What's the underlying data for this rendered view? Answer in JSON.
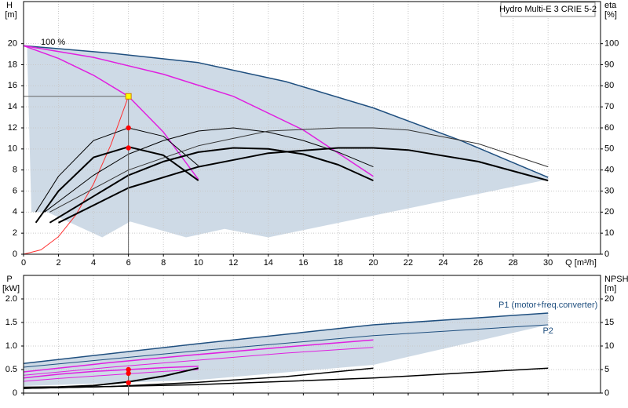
{
  "chart_data": [
    {
      "type": "line",
      "title": "Hydro Multi-E 3 CRIE 5-2",
      "xlabel": "Q [m³/h]",
      "ylabel": "H",
      "yunit": "[m]",
      "y2label": "eta",
      "y2unit": "[%]",
      "annotation": "100 %",
      "xlim": [
        0,
        33
      ],
      "xticks": [
        0,
        2,
        4,
        6,
        8,
        10,
        12,
        14,
        16,
        18,
        20,
        22,
        24,
        26,
        28,
        30
      ],
      "ylim": [
        0,
        24
      ],
      "yticks": [
        0,
        2,
        4,
        6,
        8,
        10,
        12,
        14,
        16,
        18,
        20
      ],
      "y2lim": [
        0,
        120
      ],
      "y2ticks": [
        0,
        10,
        20,
        30,
        40,
        50,
        60,
        70,
        80,
        90,
        100
      ],
      "grid": true,
      "series": [
        {
          "type": "area",
          "color": "#c9d6e3",
          "x": [
            0,
            5,
            10,
            15,
            20,
            25,
            30,
            30,
            14,
            11.5,
            9.3,
            6.1,
            4.5,
            1.35,
            0.45,
            0.2
          ],
          "values": [
            19.8,
            19.1,
            18.2,
            16.4,
            13.9,
            10.8,
            7.3,
            7.1,
            1.6,
            2.4,
            1.6,
            3.1,
            1.6,
            4.0,
            4.0,
            19.7
          ]
        },
        {
          "type": "line",
          "color": "#1f4f7f",
          "width": 1.5,
          "x": [
            0,
            5,
            10,
            15,
            20,
            25,
            30
          ],
          "values": [
            19.8,
            19.1,
            18.2,
            16.4,
            13.9,
            10.8,
            7.3
          ]
        },
        {
          "type": "line",
          "color": "#e020e0",
          "width": 1.5,
          "x": [
            0,
            4,
            8,
            12,
            16,
            20
          ],
          "values": [
            19.8,
            18.7,
            17.1,
            15.0,
            11.8,
            7.4
          ]
        },
        {
          "type": "line",
          "color": "#e020e0",
          "width": 1.5,
          "x": [
            0,
            2,
            4,
            6,
            8,
            10
          ],
          "values": [
            19.8,
            18.6,
            17.0,
            15.0,
            11.6,
            7.1
          ]
        },
        {
          "type": "line",
          "color": "#ff3030",
          "width": 1,
          "x": [
            0,
            1,
            2,
            3,
            4,
            5,
            6
          ],
          "values": [
            0,
            0.42,
            1.67,
            3.75,
            6.67,
            10.42,
            15
          ]
        },
        {
          "type": "line",
          "axis": "y2",
          "color": "#000000",
          "width": 2,
          "x": [
            0.7,
            2,
            4,
            6,
            8,
            10
          ],
          "values": [
            15,
            30,
            46,
            51,
            47,
            35
          ]
        },
        {
          "type": "line",
          "axis": "y2",
          "color": "#000000",
          "width": 1,
          "x": [
            0.7,
            2,
            4,
            6,
            8,
            10
          ],
          "values": [
            20,
            37,
            54,
            60,
            56,
            42
          ]
        },
        {
          "type": "line",
          "axis": "y2",
          "color": "#000000",
          "width": 2,
          "x": [
            1.5,
            4,
            6,
            8,
            10,
            12,
            14,
            16,
            18,
            20
          ],
          "values": [
            15,
            27.5,
            37.5,
            44,
            48.5,
            50.5,
            50,
            47.5,
            42.5,
            35
          ]
        },
        {
          "type": "line",
          "axis": "y2",
          "color": "#000000",
          "width": 1,
          "x": [
            1.2,
            4,
            6,
            8,
            10,
            12,
            14,
            16,
            18,
            20
          ],
          "values": [
            20,
            37.5,
            47.5,
            54,
            58.5,
            60,
            58,
            54,
            48.5,
            41.5
          ]
        },
        {
          "type": "line",
          "axis": "y2",
          "color": "#000000",
          "width": 2,
          "x": [
            2,
            6,
            10,
            14,
            18,
            20,
            22,
            26,
            30
          ],
          "values": [
            15,
            31.5,
            41.5,
            48,
            50.5,
            50.5,
            49.5,
            44,
            35
          ]
        },
        {
          "type": "line",
          "axis": "y2",
          "color": "#333333",
          "width": 1,
          "x": [
            1.5,
            6,
            10,
            14,
            18,
            20,
            22,
            26,
            30
          ],
          "values": [
            20,
            40,
            51.5,
            58.5,
            60,
            60,
            59,
            52.5,
            41.5
          ]
        },
        {
          "type": "point",
          "marker": "circle",
          "color": "#ff0000",
          "x": [
            6,
            6
          ],
          "values": [
            12,
            10.1
          ]
        },
        {
          "type": "point",
          "marker": "square",
          "color": "#ffff00",
          "guides": "both",
          "x": [
            6
          ],
          "values": [
            15
          ]
        }
      ]
    },
    {
      "type": "line",
      "ylabel": "P",
      "yunit": "[kW]",
      "y2label": "NPSH",
      "y2unit": "[m]",
      "xlim": [
        0,
        33
      ],
      "ylim": [
        0,
        2.5
      ],
      "yticks": [
        0,
        0.5,
        {
          "value": 1,
          "label": "1.0"
        },
        1.5,
        {
          "value": 2,
          "label": "2.0"
        }
      ],
      "y2lim": [
        0,
        25
      ],
      "y2ticks": [
        0,
        5,
        10,
        15,
        20
      ],
      "grid": true,
      "series": [
        {
          "type": "area",
          "color": "#c9d6e3",
          "x": [
            0,
            10,
            20,
            30,
            30,
            20,
            10,
            0
          ],
          "values": [
            0.63,
            1.05,
            1.45,
            1.7,
            1.45,
            0.6,
            0.28,
            0.15
          ]
        },
        {
          "type": "line",
          "name": "P1 (motor+freq.converter)",
          "color": "#1f4f7f",
          "width": 1.5,
          "x": [
            0,
            10,
            20,
            30
          ],
          "values": [
            0.63,
            1.05,
            1.45,
            1.7
          ]
        },
        {
          "type": "line",
          "name": "P2",
          "color": "#1f4f7f",
          "width": 1,
          "x": [
            0,
            10,
            20,
            30
          ],
          "values": [
            0.55,
            0.9,
            1.22,
            1.45
          ]
        },
        {
          "type": "line",
          "color": "#e020e0",
          "width": 1.5,
          "x": [
            0,
            5,
            10,
            15,
            20
          ],
          "values": [
            0.45,
            0.65,
            0.82,
            0.98,
            1.13
          ]
        },
        {
          "type": "line",
          "color": "#e020e0",
          "width": 1,
          "x": [
            0,
            5,
            10,
            15,
            20
          ],
          "values": [
            0.38,
            0.55,
            0.7,
            0.85,
            0.97
          ]
        },
        {
          "type": "line",
          "color": "#e020e0",
          "width": 1.5,
          "x": [
            0,
            2,
            4,
            6,
            8,
            10
          ],
          "values": [
            0.32,
            0.4,
            0.46,
            0.5,
            0.54,
            0.57
          ]
        },
        {
          "type": "line",
          "color": "#e020e0",
          "width": 1,
          "x": [
            0,
            2,
            4,
            6,
            8,
            10
          ],
          "values": [
            0.25,
            0.31,
            0.36,
            0.41,
            0.46,
            0.5
          ]
        },
        {
          "type": "line",
          "axis": "y2",
          "color": "#000000",
          "width": 2,
          "x": [
            0,
            2,
            4,
            6,
            8,
            10
          ],
          "values": [
            1.2,
            1.3,
            1.6,
            2.4,
            3.6,
            5.3
          ]
        },
        {
          "type": "line",
          "axis": "y2",
          "color": "#000000",
          "width": 1.5,
          "x": [
            0,
            5,
            10,
            15,
            20
          ],
          "values": [
            1.0,
            1.4,
            2.3,
            3.5,
            5.3
          ]
        },
        {
          "type": "line",
          "axis": "y2",
          "color": "#000000",
          "width": 1.5,
          "x": [
            0,
            10,
            20,
            30
          ],
          "values": [
            1.0,
            1.8,
            3.2,
            5.3
          ]
        },
        {
          "type": "point",
          "marker": "circle",
          "color": "#ff0000",
          "guides": "x",
          "x": [
            6,
            6
          ],
          "values": [
            0.5,
            0.42
          ]
        },
        {
          "type": "point",
          "axis": "y2",
          "marker": "circle",
          "color": "#ff0000",
          "x": [
            6
          ],
          "values": [
            2.2
          ]
        }
      ]
    }
  ]
}
